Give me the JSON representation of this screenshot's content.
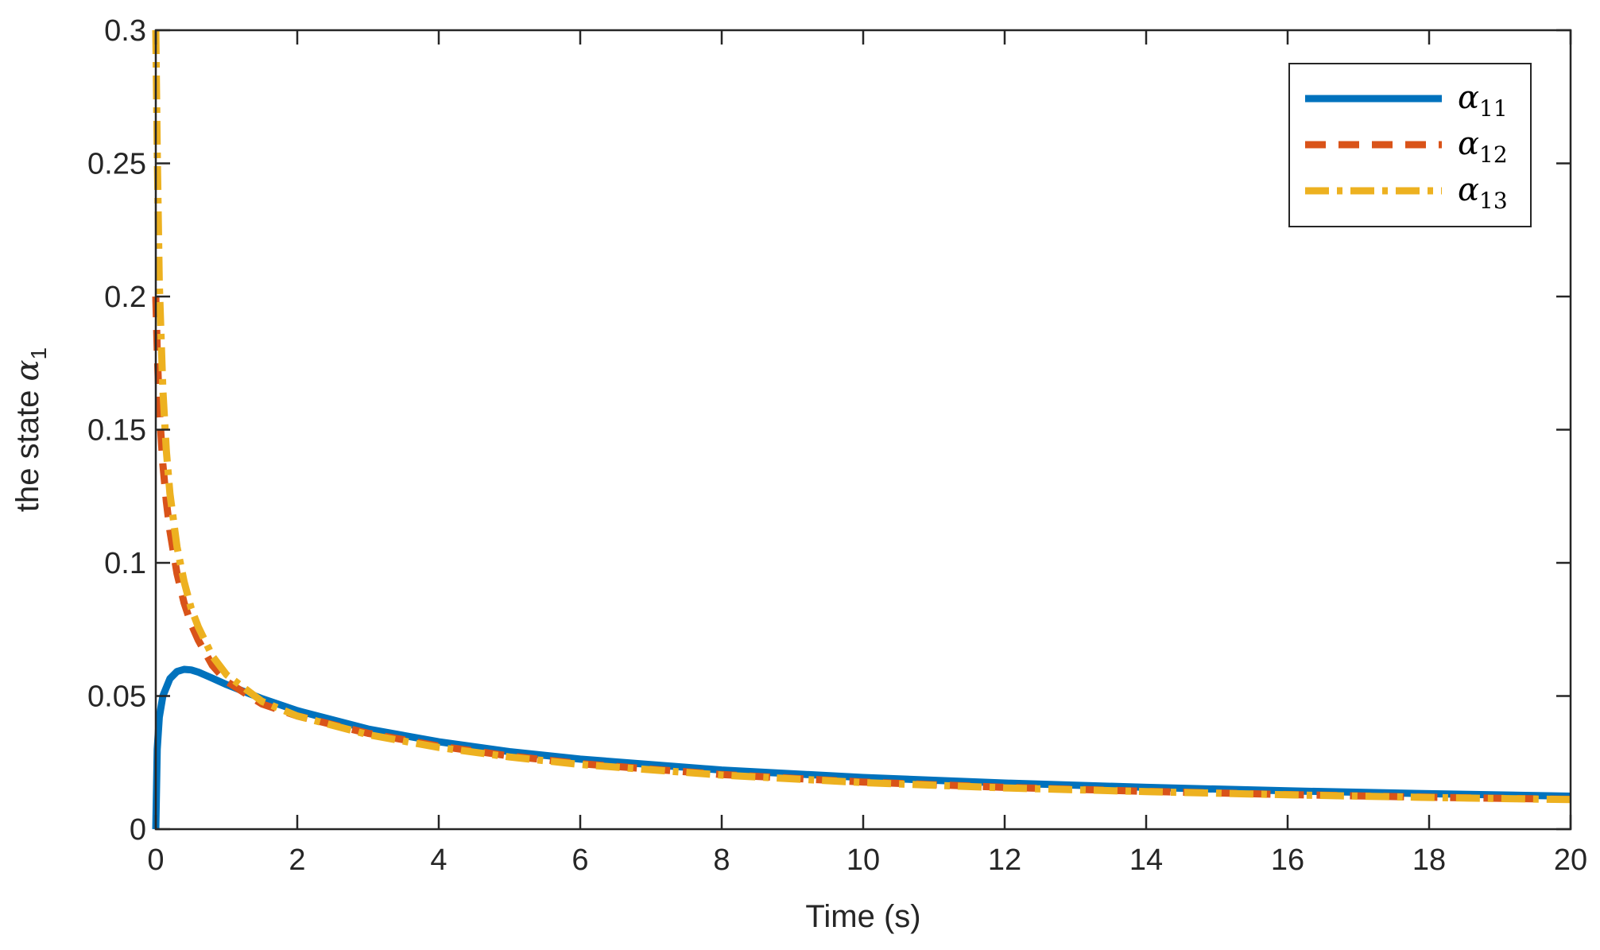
{
  "chart_data": {
    "type": "line",
    "xlabel": "Time (s)",
    "ylabel": {
      "text": "the state ",
      "symbol": "α",
      "subscript": "1"
    },
    "xlim": [
      0,
      20
    ],
    "ylim": [
      0,
      0.3
    ],
    "x_ticks": [
      0,
      2,
      4,
      6,
      8,
      10,
      12,
      14,
      16,
      18,
      20
    ],
    "x_tick_labels": [
      "0",
      "2",
      "4",
      "6",
      "8",
      "10",
      "12",
      "14",
      "16",
      "18",
      "20"
    ],
    "y_ticks": [
      0,
      0.05,
      0.1,
      0.15,
      0.2,
      0.25,
      0.3
    ],
    "y_tick_labels": [
      "0",
      "0.05",
      "0.1",
      "0.15",
      "0.2",
      "0.25",
      "0.3"
    ],
    "grid": false,
    "legend_position": "top-right",
    "series": [
      {
        "name": "α",
        "name_subscript": "11",
        "color": "#0072BD",
        "style": "solid",
        "x": [
          0,
          0.02,
          0.05,
          0.1,
          0.2,
          0.3,
          0.4,
          0.5,
          0.6,
          0.8,
          1.0,
          1.5,
          2.0,
          3.0,
          4.0,
          5.0,
          6.0,
          8.0,
          10.0,
          12.0,
          14.0,
          16.0,
          18.0,
          20.0
        ],
        "y": [
          0,
          0.03,
          0.042,
          0.05,
          0.0565,
          0.0592,
          0.06,
          0.0598,
          0.059,
          0.0567,
          0.0543,
          0.049,
          0.0445,
          0.0376,
          0.0328,
          0.0291,
          0.0263,
          0.0222,
          0.0194,
          0.0173,
          0.0157,
          0.0144,
          0.0133,
          0.0124
        ]
      },
      {
        "name": "α",
        "name_subscript": "12",
        "color": "#D95319",
        "style": "dashed",
        "x": [
          0,
          0.02,
          0.05,
          0.1,
          0.15,
          0.2,
          0.3,
          0.4,
          0.5,
          0.6,
          0.8,
          1.0,
          1.5,
          2.0,
          3.0,
          4.0,
          5.0,
          6.0,
          8.0,
          10.0,
          12.0,
          14.0,
          16.0,
          18.0,
          20.0
        ],
        "y": [
          0.2,
          0.18,
          0.158,
          0.137,
          0.123,
          0.112,
          0.096,
          0.085,
          0.077,
          0.071,
          0.0615,
          0.0555,
          0.047,
          0.0425,
          0.036,
          0.0312,
          0.0275,
          0.0246,
          0.0205,
          0.0177,
          0.0157,
          0.0142,
          0.013,
          0.012,
          0.0112
        ]
      },
      {
        "name": "α",
        "name_subscript": "13",
        "color": "#EDB120",
        "style": "dashdot",
        "x": [
          0,
          0.02,
          0.05,
          0.1,
          0.15,
          0.2,
          0.3,
          0.4,
          0.5,
          0.6,
          0.8,
          1.0,
          1.5,
          2.0,
          3.0,
          4.0,
          5.0,
          6.0,
          8.0,
          10.0,
          12.0,
          14.0,
          16.0,
          18.0,
          20.0
        ],
        "y": [
          0.3,
          0.255,
          0.205,
          0.165,
          0.142,
          0.126,
          0.106,
          0.093,
          0.083,
          0.076,
          0.065,
          0.058,
          0.048,
          0.0425,
          0.0355,
          0.0307,
          0.0271,
          0.0243,
          0.0203,
          0.0175,
          0.0155,
          0.0141,
          0.0129,
          0.0119,
          0.0111
        ]
      }
    ]
  }
}
